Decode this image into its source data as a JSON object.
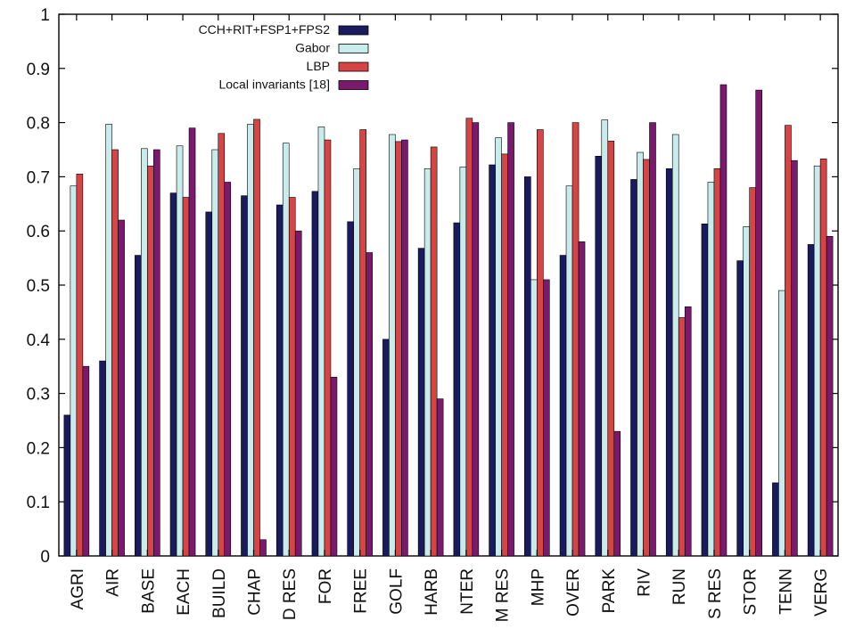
{
  "chart_data": {
    "type": "bar",
    "title": "",
    "xlabel": "",
    "ylabel": "",
    "ylim": [
      0,
      1
    ],
    "yticks": [
      0,
      0.1,
      0.2,
      0.3,
      0.4,
      0.5,
      0.6,
      0.7,
      0.8,
      0.9,
      1
    ],
    "ytick_labels": [
      "0",
      "0.1",
      "0.2",
      "0.3",
      "0.4",
      "0.5",
      "0.6",
      "0.7",
      "0.8",
      "0.9",
      "1"
    ],
    "grid": false,
    "legend_position": "top-left",
    "categories": [
      "AGRI",
      "AIR",
      "BASE",
      "EACH",
      "BUILD",
      "CHAP",
      "D RES",
      "FOR",
      "FREE",
      "GOLF",
      "HARB",
      "NTER",
      "M RES",
      "MHP",
      "OVER",
      "PARK",
      "RIV",
      "RUN",
      "S RES",
      "STOR",
      "TENN",
      "VERG"
    ],
    "series": [
      {
        "name": "CCH+RIT+FSP1+FPS2",
        "color": "#1a1a5e",
        "values": [
          0.26,
          0.36,
          0.555,
          0.67,
          0.635,
          0.665,
          0.648,
          0.673,
          0.617,
          0.4,
          0.568,
          0.615,
          0.722,
          0.7,
          0.555,
          0.738,
          0.695,
          0.715,
          0.613,
          0.545,
          0.135,
          0.575
        ]
      },
      {
        "name": "Gabor",
        "color": "#c8ecec",
        "values": [
          0.683,
          0.797,
          0.752,
          0.757,
          0.75,
          0.797,
          0.762,
          0.792,
          0.715,
          0.778,
          0.715,
          0.718,
          0.772,
          0.51,
          0.683,
          0.805,
          0.745,
          0.778,
          0.69,
          0.608,
          0.49,
          0.72
        ]
      },
      {
        "name": "LBP",
        "color": "#d64545",
        "values": [
          0.705,
          0.75,
          0.72,
          0.662,
          0.78,
          0.806,
          0.662,
          0.768,
          0.787,
          0.765,
          0.755,
          0.808,
          0.742,
          0.787,
          0.8,
          0.766,
          0.732,
          0.44,
          0.715,
          0.68,
          0.795,
          0.733
        ]
      },
      {
        "name": "Local invariants [18]",
        "color": "#7a1a6e",
        "values": [
          0.35,
          0.62,
          0.75,
          0.79,
          0.69,
          0.03,
          0.6,
          0.33,
          0.56,
          0.768,
          0.29,
          0.8,
          0.8,
          0.51,
          0.58,
          0.23,
          0.8,
          0.46,
          0.87,
          0.86,
          0.73,
          0.59
        ]
      }
    ]
  }
}
